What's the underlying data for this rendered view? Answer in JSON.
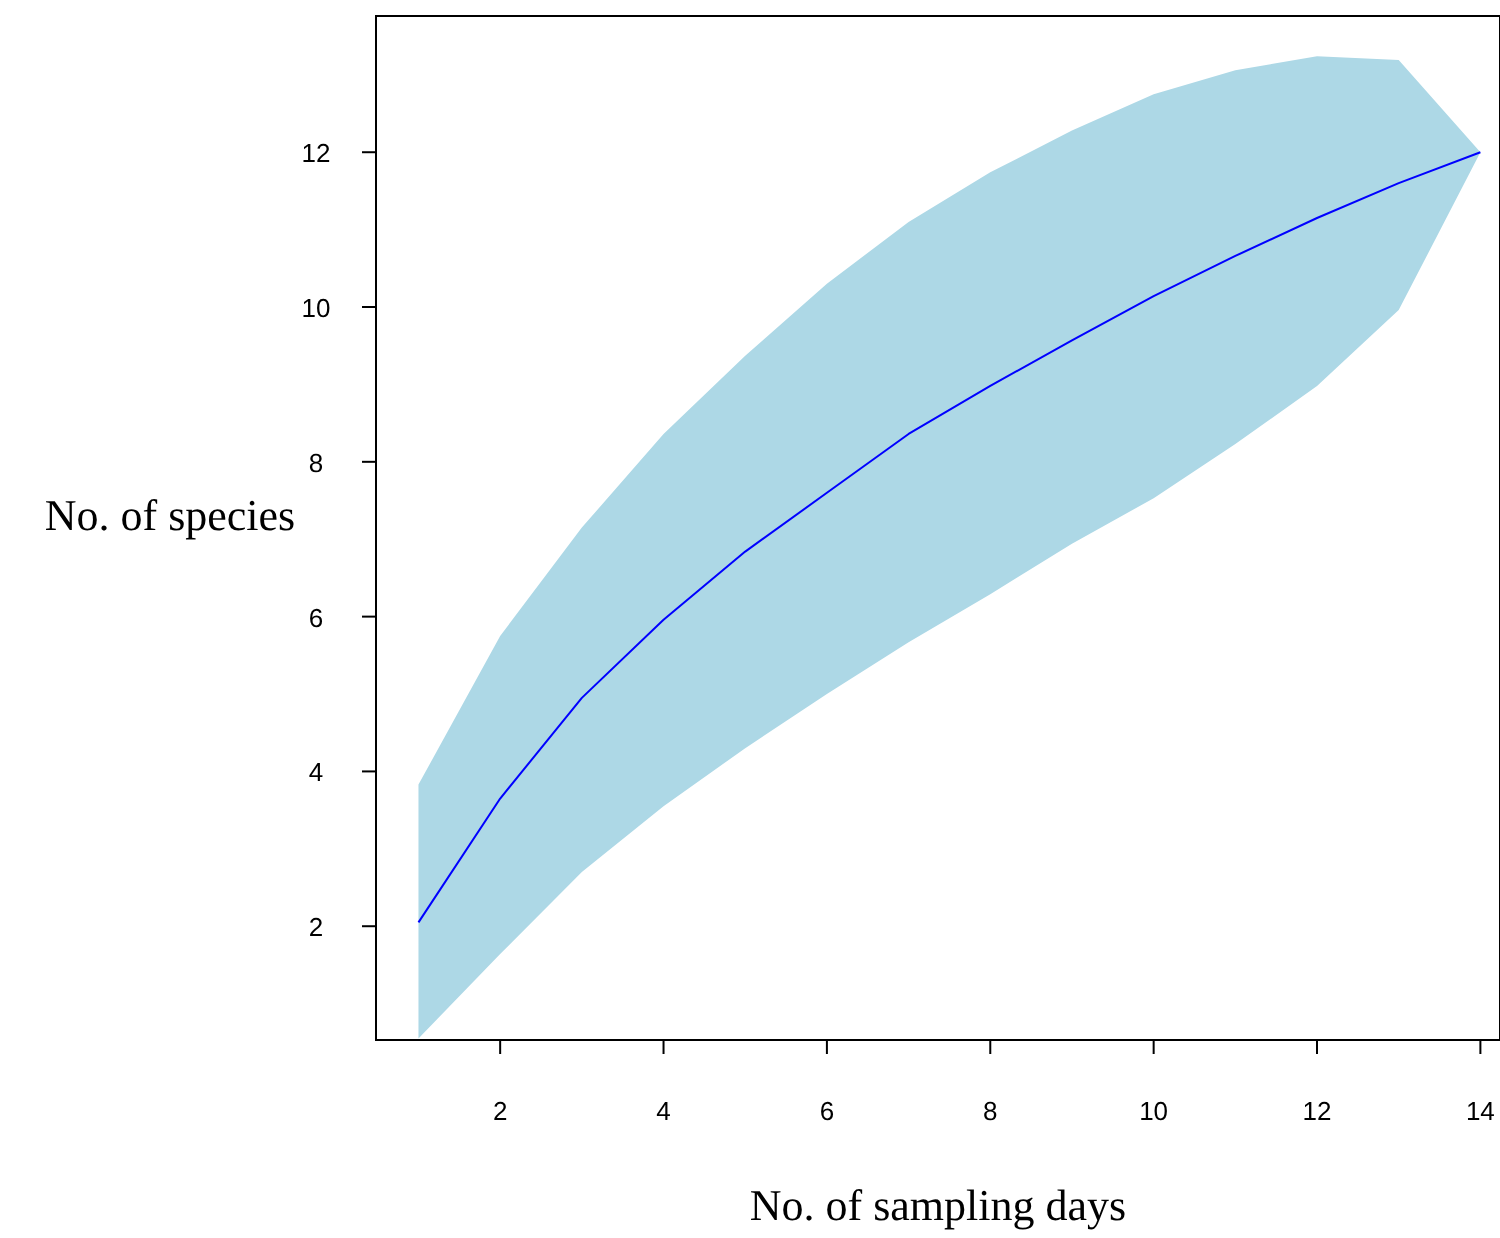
{
  "chart_data": {
    "type": "line",
    "xlabel": "No. of sampling days",
    "ylabel": "No. of species",
    "x": [
      1,
      2,
      3,
      4,
      5,
      6,
      7,
      8,
      9,
      10,
      11,
      12,
      13,
      14
    ],
    "series": [
      {
        "color": "#0000ff",
        "values": [
          2.05,
          3.65,
          4.95,
          5.96,
          6.84,
          7.6,
          8.36,
          8.98,
          9.57,
          10.14,
          10.66,
          11.15,
          11.6,
          12
        ],
        "lower": [
          0.55,
          1.64,
          2.7,
          3.55,
          4.3,
          5.0,
          5.67,
          6.29,
          6.94,
          7.53,
          8.23,
          8.98,
          9.96,
          12
        ],
        "upper": [
          3.83,
          5.75,
          7.15,
          8.36,
          9.37,
          10.3,
          11.1,
          11.74,
          12.28,
          12.75,
          13.06,
          13.24,
          13.19,
          12
        ]
      }
    ],
    "xlim": [
      0.48,
      14.24
    ],
    "ylim": [
      0.53,
      13.76
    ],
    "xticks": [
      2,
      4,
      6,
      8,
      10,
      12,
      14
    ],
    "yticks": [
      2,
      4,
      6,
      8,
      10,
      12
    ],
    "grid": false,
    "marker": "none",
    "line_style": "solid"
  }
}
